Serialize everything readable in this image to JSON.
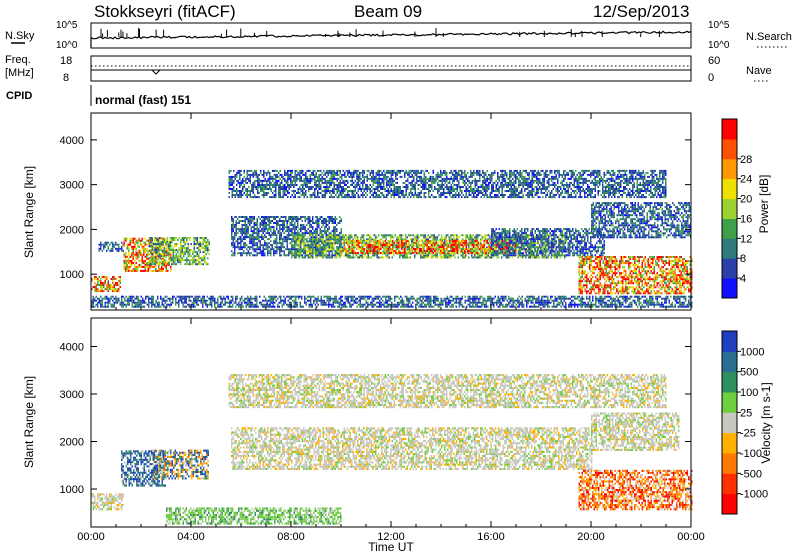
{
  "header": {
    "station": "Stokkseyri (fitACF)",
    "beam": "Beam 09",
    "date": "12/Sep/2013"
  },
  "noise_panel": {
    "left_label": "N.Sky",
    "right_label": "N.Search",
    "ticks_left": [
      "10^5",
      "10^0"
    ],
    "ticks_right": [
      "10^5",
      "10^0"
    ]
  },
  "freq_panel": {
    "left_label_1": "Freq.",
    "left_label_2": "[MHz]",
    "right_label": "Nave",
    "ticks_left": [
      "18",
      "8"
    ],
    "ticks_right": [
      "60",
      "0"
    ]
  },
  "cpid": {
    "label": "CPID",
    "value": "normal (fast) 151"
  },
  "time_axis": {
    "ticks": [
      "00:00",
      "04:00",
      "08:00",
      "12:00",
      "16:00",
      "20:00",
      "00:00"
    ],
    "label": "Time UT"
  },
  "chart_data": [
    {
      "type": "heatmap",
      "parameter": "Power",
      "ylabel": "Slant Range [km]",
      "yticks": [
        "1000",
        "2000",
        "3000",
        "4000"
      ],
      "ylim": [
        200,
        4600
      ],
      "xlim_hours": [
        0,
        24
      ],
      "colorbar": {
        "label": "Power [dB]",
        "ticks": [
          "4",
          "8",
          "12",
          "16",
          "20",
          "24",
          "28"
        ],
        "colors": [
          "#1010ff",
          "#2a3fa8",
          "#2f7a7a",
          "#3fa04a",
          "#9bd22f",
          "#f0e000",
          "#ff9a00",
          "#ff5000",
          "#ff0000"
        ]
      },
      "regions": [
        {
          "t0": 0.0,
          "t1": 1.2,
          "r0": 600,
          "r1": 950,
          "level": "high"
        },
        {
          "t0": 0.3,
          "t1": 1.3,
          "r0": 1500,
          "r1": 1700,
          "level": "low"
        },
        {
          "t0": 1.3,
          "t1": 3.2,
          "r0": 1050,
          "r1": 1800,
          "level": "high"
        },
        {
          "t0": 2.3,
          "t1": 4.7,
          "r0": 1200,
          "r1": 1800,
          "level": "mid"
        },
        {
          "t0": 5.6,
          "t1": 10.0,
          "r0": 1400,
          "r1": 2300,
          "level": "low"
        },
        {
          "t0": 8.0,
          "t1": 19.0,
          "r0": 1350,
          "r1": 1850,
          "level": "mid"
        },
        {
          "t0": 10.0,
          "t1": 17.0,
          "r0": 1450,
          "r1": 1750,
          "level": "high"
        },
        {
          "t0": 16.0,
          "t1": 20.5,
          "r0": 1400,
          "r1": 2000,
          "level": "low"
        },
        {
          "t0": 20.0,
          "t1": 24.0,
          "r0": 1800,
          "r1": 2600,
          "level": "low"
        },
        {
          "t0": 19.5,
          "t1": 24.0,
          "r0": 550,
          "r1": 1400,
          "level": "high"
        },
        {
          "t0": 5.5,
          "t1": 23.0,
          "r0": 2700,
          "r1": 3300,
          "level": "low"
        },
        {
          "t0": 0.0,
          "t1": 24.0,
          "r0": 250,
          "r1": 500,
          "level": "low"
        }
      ]
    },
    {
      "type": "heatmap",
      "parameter": "Velocity",
      "ylabel": "Slant Range [km]",
      "yticks": [
        "1000",
        "2000",
        "3000",
        "4000"
      ],
      "ylim": [
        200,
        4600
      ],
      "xlim_hours": [
        0,
        24
      ],
      "colorbar": {
        "label": "Velocity [m s-1]",
        "ticks": [
          "1000",
          "500",
          "100",
          "25",
          "-25",
          "-100",
          "-500",
          "-1000"
        ],
        "colors": [
          "#1f3fbf",
          "#2a6f8f",
          "#2f8f5f",
          "#6fcf3f",
          "#c8c8c0",
          "#ffb000",
          "#ff7a00",
          "#ff3000",
          "#ff0000"
        ]
      },
      "regions": [
        {
          "t0": 0.0,
          "t1": 1.3,
          "r0": 550,
          "r1": 900,
          "level": "zero"
        },
        {
          "t0": 1.2,
          "t1": 3.0,
          "r0": 1050,
          "r1": 1800,
          "level": "pos"
        },
        {
          "t0": 2.5,
          "t1": 4.7,
          "r0": 1200,
          "r1": 1800,
          "level": "mixed"
        },
        {
          "t0": 5.6,
          "t1": 20.0,
          "r0": 1400,
          "r1": 2300,
          "level": "zero"
        },
        {
          "t0": 20.0,
          "t1": 23.5,
          "r0": 1800,
          "r1": 2600,
          "level": "zero"
        },
        {
          "t0": 19.5,
          "t1": 24.0,
          "r0": 550,
          "r1": 1400,
          "level": "neg"
        },
        {
          "t0": 5.5,
          "t1": 23.0,
          "r0": 2700,
          "r1": 3400,
          "level": "zero"
        },
        {
          "t0": 3.0,
          "t1": 10.0,
          "r0": 250,
          "r1": 600,
          "level": "slow"
        }
      ]
    }
  ]
}
